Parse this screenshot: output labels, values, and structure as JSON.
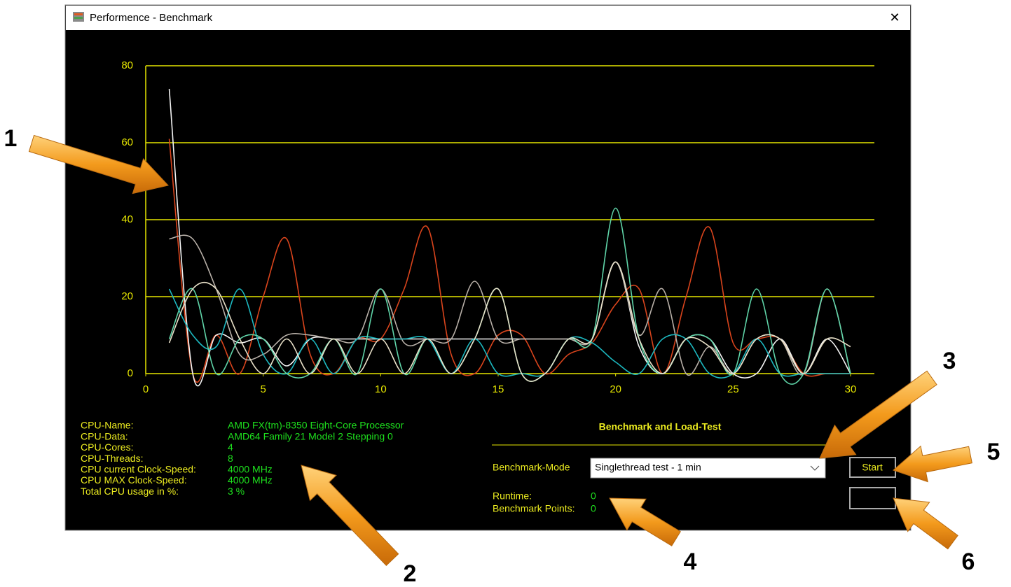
{
  "window": {
    "title": "Performence - Benchmark",
    "close": "✕"
  },
  "chart_data": {
    "type": "line",
    "x": [
      1,
      2,
      3,
      4,
      5,
      6,
      7,
      8,
      9,
      10,
      11,
      12,
      13,
      14,
      15,
      16,
      17,
      18,
      19,
      20,
      21,
      22,
      23,
      24,
      25,
      26,
      27,
      28,
      29,
      30
    ],
    "series": [
      {
        "color": "#d9441c",
        "values": [
          61,
          0,
          10,
          0,
          20,
          35,
          5,
          0,
          9,
          9,
          22,
          38,
          5,
          0,
          10,
          10,
          0,
          5,
          8,
          18,
          22,
          0,
          20,
          38,
          8,
          9,
          9,
          0,
          0,
          0
        ]
      },
      {
        "color": "#f4f4f4",
        "values": [
          74,
          0,
          10,
          8,
          9,
          2,
          9,
          9,
          9,
          9,
          9,
          9,
          9,
          9,
          9,
          9,
          9,
          9,
          9,
          29,
          7,
          0,
          9,
          9,
          0,
          0,
          9,
          0,
          9,
          0
        ]
      },
      {
        "color": "#b8b0a8",
        "values": [
          35,
          35,
          22,
          5,
          5,
          10,
          10,
          9,
          9,
          22,
          8,
          9,
          9,
          24,
          9,
          9,
          9,
          9,
          9,
          29,
          10,
          22,
          0,
          7,
          0,
          9,
          9,
          0,
          22,
          0
        ]
      },
      {
        "color": "#1cb8c0",
        "values": [
          22,
          10,
          7,
          22,
          5,
          0,
          9,
          0,
          9,
          9,
          9,
          9,
          0,
          9,
          0,
          0,
          0,
          9,
          8,
          3,
          0,
          9,
          9,
          0,
          0,
          9,
          0,
          0,
          0,
          0
        ]
      },
      {
        "color": "#5fd4a8",
        "values": [
          9,
          22,
          0,
          9,
          9,
          0,
          0,
          9,
          0,
          22,
          0,
          9,
          0,
          9,
          22,
          0,
          0,
          9,
          9,
          43,
          9,
          0,
          9,
          9,
          0,
          22,
          0,
          0,
          22,
          0
        ]
      },
      {
        "color": "#e8e0c8",
        "values": [
          8,
          22,
          22,
          9,
          0,
          9,
          0,
          9,
          0,
          9,
          0,
          9,
          0,
          9,
          22,
          0,
          0,
          9,
          9,
          29,
          9,
          0,
          9,
          7,
          0,
          9,
          9,
          0,
          9,
          7
        ]
      }
    ],
    "xlim": [
      0,
      30
    ],
    "xticks": [
      0,
      5,
      10,
      15,
      20,
      25,
      30
    ],
    "ylim": [
      0,
      80
    ],
    "yticks": [
      0,
      20,
      40,
      60,
      80
    ],
    "grid": true
  },
  "system_info": [
    {
      "label": "CPU-Name:",
      "value": "AMD FX(tm)-8350 Eight-Core Processor"
    },
    {
      "label": "CPU-Data:",
      "value": "AMD64 Family 21 Model 2 Stepping 0"
    },
    {
      "label": "CPU-Cores:",
      "value": "4"
    },
    {
      "label": "CPU-Threads:",
      "value": "8"
    },
    {
      "label": "CPU current Clock-Speed:",
      "value": "4000 MHz"
    },
    {
      "label": "CPU MAX Clock-Speed:",
      "value": "4000 MHz"
    },
    {
      "label": "Total CPU usage in %:",
      "value": "3 %"
    }
  ],
  "benchmark": {
    "title": "Benchmark and Load-Test",
    "mode_label": "Benchmark-Mode",
    "mode_value": "Singlethread test - 1 min",
    "start": "Start",
    "runtime_label": "Runtime:",
    "runtime_value": "0",
    "points_label": "Benchmark Points:",
    "points_value": "0"
  },
  "annotations": [
    "1",
    "2",
    "3",
    "4",
    "5",
    "6"
  ]
}
